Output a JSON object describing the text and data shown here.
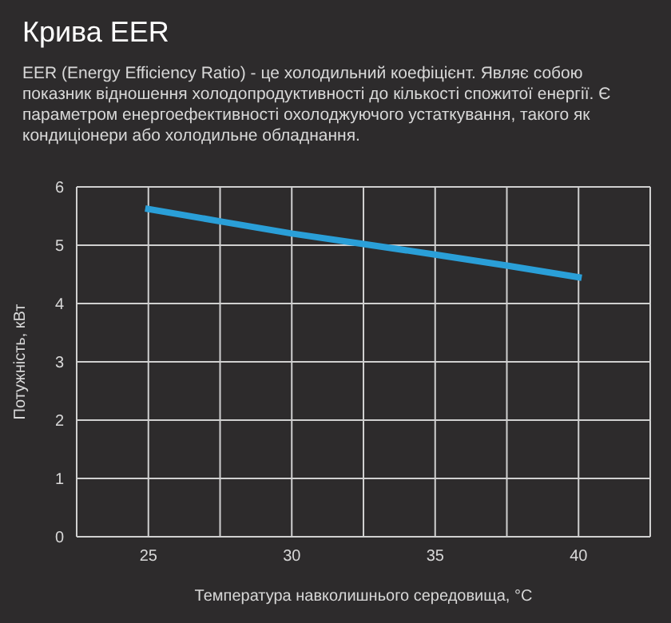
{
  "chart_data": {
    "type": "line",
    "title": "Крива EER",
    "subtitle": "EER (Energy Efficiency Ratio) - це холодильний коефіцієнт. Являє собою показник відношення холодопродуктивності до кількості спожитої енергії. Є параметром енергоефективності охолоджуючого устаткування, такого як кондиціонери або холодильне обладнання.",
    "xlabel": "Температура навколишнього середовища, °C",
    "ylabel": "Потужність, кВт",
    "x": [
      25,
      27.5,
      30,
      32.5,
      35,
      37.5,
      40
    ],
    "series": [
      {
        "color": "#2a9fd8",
        "values": [
          5.62,
          5.41,
          5.2,
          5.02,
          4.84,
          4.65,
          4.45
        ]
      }
    ],
    "xlim": [
      22.5,
      42.5
    ],
    "xticks": [
      {
        "value": 22.5,
        "label": null
      },
      25,
      {
        "value": 27.5,
        "label": null
      },
      30,
      {
        "value": 32.5,
        "label": null
      },
      35,
      {
        "value": 37.5,
        "label": null
      },
      40,
      {
        "value": 42.5,
        "label": null
      }
    ],
    "ylim": [
      0,
      6
    ],
    "yticks": [
      0,
      1,
      2,
      3,
      4,
      5,
      6
    ],
    "grid": true,
    "marker": "none",
    "line_style": "solid"
  }
}
